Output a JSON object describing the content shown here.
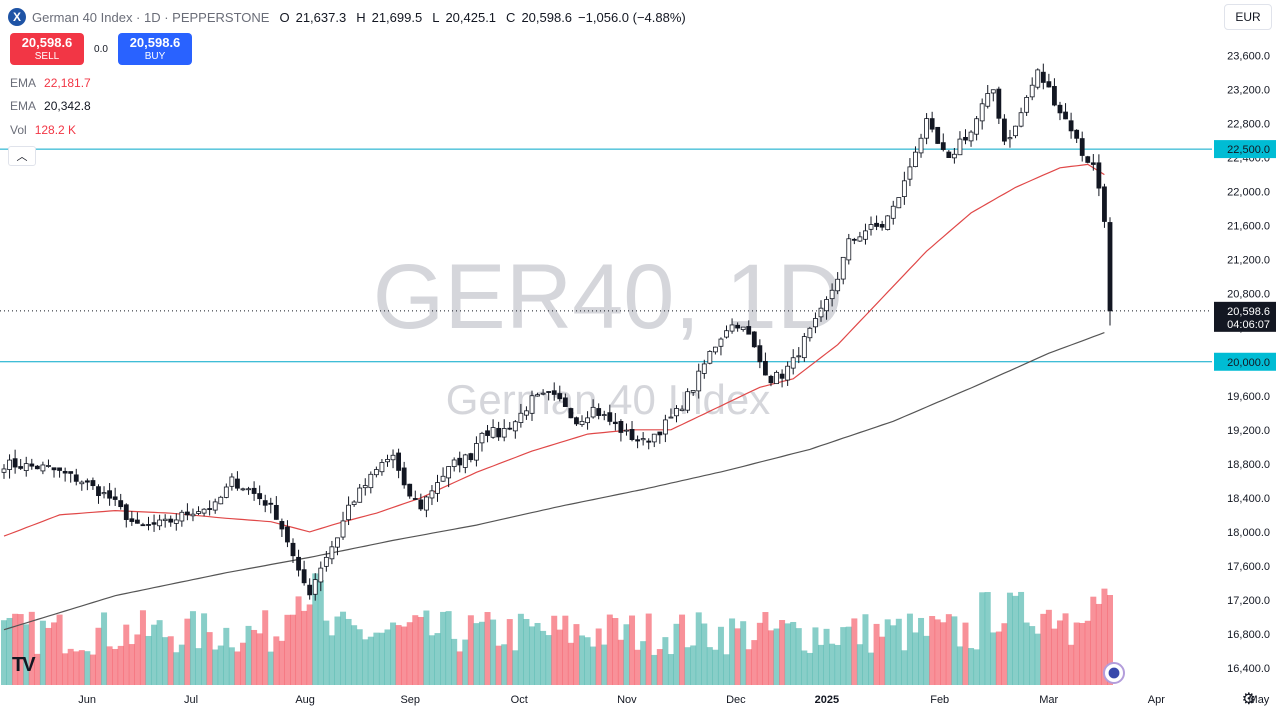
{
  "header": {
    "title": "German 40 Index · 1D · PEPPERSTONE",
    "ohlc": [
      {
        "k": "O",
        "v": "21,637.3"
      },
      {
        "k": "H",
        "v": "21,699.5"
      },
      {
        "k": "L",
        "v": "20,425.1"
      },
      {
        "k": "C",
        "v": "20,598.6"
      }
    ],
    "change": "−1,056.0 (−4.88%)",
    "currency": "EUR"
  },
  "trade": {
    "sell_price": "20,598.6",
    "sell_label": "SELL",
    "spread": "0.0",
    "buy_price": "20,598.6",
    "buy_label": "BUY"
  },
  "indicators": [
    {
      "name": "EMA",
      "value": "22,181.7",
      "color": "#f23645"
    },
    {
      "name": "EMA",
      "value": "20,342.8",
      "color": "#131722"
    },
    {
      "name": "Vol",
      "value": "128.2 K",
      "color": "#f23645"
    }
  ],
  "watermark": {
    "symbol": "GER40, 1D",
    "name": "German 40 Index"
  },
  "colors": {
    "up": "#26a69a",
    "down": "#f23645",
    "candle": "#131722",
    "ema_fast": "#e04848",
    "ema_slow": "#555555",
    "hline": "#00a7c9",
    "price_label": "#131722",
    "hline_label": "#00bcd4"
  },
  "chart_data": {
    "type": "candlestick",
    "title": "German 40 Index",
    "ylim": [
      16200,
      23900
    ],
    "y_ticks": [
      "23,600.0",
      "23,200.0",
      "22,800.0",
      "22,400.0",
      "22,000.0",
      "21,600.0",
      "21,200.0",
      "20,800.0",
      "20,400.0",
      "20,000.0",
      "19,600.0",
      "19,200.0",
      "18,800.0",
      "18,400.0",
      "18,000.0",
      "17,600.0",
      "17,200.0",
      "16,800.0",
      "16,400.0"
    ],
    "x_labels": [
      "Jun",
      "Jul",
      "Aug",
      "Sep",
      "Oct",
      "Nov",
      "Dec",
      "2025",
      "Feb",
      "Mar",
      "Apr",
      "May"
    ],
    "horizontal_lines": [
      {
        "value": 22500,
        "label": "22,500.0"
      },
      {
        "value": 20000,
        "label": "20,000.0"
      }
    ],
    "last_price": {
      "value": 20598.6,
      "label": "20,598.6",
      "countdown": "04:06:07"
    },
    "close_path": [
      [
        0,
        18800
      ],
      [
        8,
        18750
      ],
      [
        14,
        18600
      ],
      [
        19,
        18400
      ],
      [
        24,
        18050
      ],
      [
        29,
        18100
      ],
      [
        34,
        18250
      ],
      [
        38,
        18300
      ],
      [
        41,
        18600
      ],
      [
        44,
        18500
      ],
      [
        47,
        18350
      ],
      [
        49,
        18200
      ],
      [
        51,
        17900
      ],
      [
        53,
        17500
      ],
      [
        55,
        17300
      ],
      [
        57,
        17600
      ],
      [
        60,
        17950
      ],
      [
        62,
        18300
      ],
      [
        65,
        18550
      ],
      [
        68,
        18800
      ],
      [
        70,
        18900
      ],
      [
        72,
        18500
      ],
      [
        75,
        18300
      ],
      [
        78,
        18600
      ],
      [
        81,
        18800
      ],
      [
        84,
        18900
      ],
      [
        86,
        19200
      ],
      [
        89,
        19150
      ],
      [
        92,
        19300
      ],
      [
        95,
        19550
      ],
      [
        98,
        19600
      ],
      [
        101,
        19500
      ],
      [
        103,
        19300
      ],
      [
        106,
        19450
      ],
      [
        109,
        19300
      ],
      [
        112,
        19150
      ],
      [
        115,
        19050
      ],
      [
        118,
        19200
      ],
      [
        121,
        19400
      ],
      [
        124,
        19700
      ],
      [
        127,
        20100
      ],
      [
        130,
        20400
      ],
      [
        132,
        20450
      ],
      [
        134,
        20300
      ],
      [
        136,
        20000
      ],
      [
        138,
        19800
      ],
      [
        140,
        19850
      ],
      [
        142,
        20000
      ],
      [
        144,
        20250
      ],
      [
        146,
        20450
      ],
      [
        148,
        20700
      ],
      [
        150,
        21000
      ],
      [
        152,
        21400
      ],
      [
        155,
        21550
      ],
      [
        158,
        21600
      ],
      [
        160,
        21800
      ],
      [
        162,
        22100
      ],
      [
        164,
        22500
      ],
      [
        166,
        22800
      ],
      [
        168,
        22550
      ],
      [
        170,
        22350
      ],
      [
        172,
        22600
      ],
      [
        174,
        22700
      ],
      [
        176,
        23000
      ],
      [
        178,
        23200
      ],
      [
        180,
        22600
      ],
      [
        182,
        22750
      ],
      [
        184,
        23100
      ],
      [
        186,
        23400
      ],
      [
        188,
        23200
      ],
      [
        190,
        22950
      ],
      [
        192,
        22750
      ],
      [
        194,
        22450
      ],
      [
        196,
        22300
      ],
      [
        197,
        22050
      ],
      [
        198,
        21700
      ],
      [
        199,
        20598.6
      ]
    ],
    "ema_fast_path": [
      [
        0,
        17950
      ],
      [
        10,
        18200
      ],
      [
        20,
        18250
      ],
      [
        30,
        18220
      ],
      [
        40,
        18160
      ],
      [
        48,
        18120
      ],
      [
        55,
        18000
      ],
      [
        60,
        18100
      ],
      [
        67,
        18220
      ],
      [
        75,
        18400
      ],
      [
        85,
        18700
      ],
      [
        95,
        18950
      ],
      [
        105,
        19150
      ],
      [
        113,
        19200
      ],
      [
        120,
        19200
      ],
      [
        128,
        19450
      ],
      [
        136,
        19700
      ],
      [
        142,
        19800
      ],
      [
        150,
        20200
      ],
      [
        158,
        20750
      ],
      [
        166,
        21300
      ],
      [
        174,
        21750
      ],
      [
        182,
        22050
      ],
      [
        190,
        22280
      ],
      [
        195,
        22320
      ],
      [
        198,
        22200
      ]
    ],
    "ema_slow_path": [
      [
        0,
        16850
      ],
      [
        20,
        17250
      ],
      [
        40,
        17520
      ],
      [
        55,
        17700
      ],
      [
        70,
        17900
      ],
      [
        85,
        18080
      ],
      [
        100,
        18300
      ],
      [
        115,
        18500
      ],
      [
        130,
        18720
      ],
      [
        145,
        18970
      ],
      [
        160,
        19300
      ],
      [
        175,
        19720
      ],
      [
        188,
        20100
      ],
      [
        198,
        20342.8
      ]
    ],
    "last_volume": "128.2 K",
    "x_label_positions": [
      0.068,
      0.149,
      0.238,
      0.32,
      0.405,
      0.489,
      0.574,
      0.645,
      0.733,
      0.818,
      0.902,
      0.982
    ]
  }
}
